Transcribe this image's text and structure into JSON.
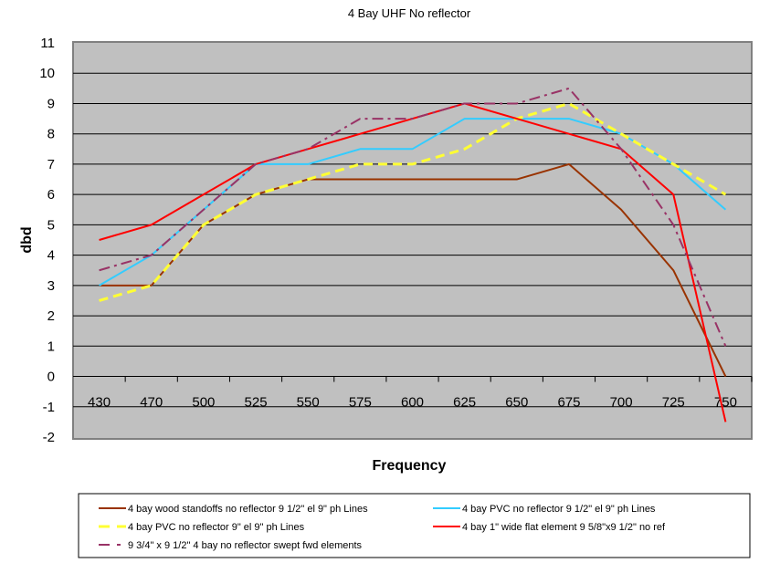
{
  "chart_data": {
    "type": "line",
    "title": "4 Bay UHF No reflector",
    "xlabel": "Frequency",
    "ylabel": "dbd",
    "categories": [
      "430",
      "470",
      "500",
      "525",
      "550",
      "575",
      "600",
      "625",
      "650",
      "675",
      "700",
      "725",
      "750"
    ],
    "ylim": [
      -2,
      11
    ],
    "yticks": [
      11,
      10,
      9,
      8,
      7,
      6,
      5,
      4,
      3,
      2,
      1,
      0,
      -1,
      -2
    ],
    "grid": true,
    "legend_position": "bottom",
    "plot_background": "#c0c0c0",
    "series": [
      {
        "name": "4 bay wood standoffs no reflector 9 1/2\" el 9\" ph Lines",
        "color": "#993300",
        "dash": "solid",
        "values": [
          3,
          3,
          5,
          6,
          6.5,
          6.5,
          6.5,
          6.5,
          6.5,
          7,
          5.5,
          3.5,
          0
        ]
      },
      {
        "name": "4 bay PVC no reflector 9 1/2\" el 9\" ph Lines",
        "color": "#33ccff",
        "dash": "solid",
        "values": [
          3,
          4,
          5.5,
          7,
          7,
          7.5,
          7.5,
          8.5,
          8.5,
          8.5,
          8,
          7,
          5.5
        ]
      },
      {
        "name": "4 bay PVC no reflector 9\" el 9\" ph Lines",
        "color": "#ffff33",
        "dash": "dashed",
        "values": [
          2.5,
          3,
          5,
          6,
          6.5,
          7,
          7,
          7.5,
          8.5,
          9,
          8,
          7,
          6
        ]
      },
      {
        "name": "4 bay 1\" wide flat element 9 5/8\"x9 1/2\"  no ref",
        "color": "#ff0000",
        "dash": "solid",
        "values": [
          4.5,
          5,
          6,
          7,
          7.5,
          8,
          8.5,
          9,
          8.5,
          8,
          7.5,
          6,
          -1.5
        ]
      },
      {
        "name": "9 3/4\" x 9 1/2\" 4 bay no reflector swept fwd elements",
        "color": "#993366",
        "dash": "dashdot",
        "values": [
          3.5,
          4,
          5.5,
          7,
          7.5,
          8.5,
          8.5,
          9,
          9,
          9.5,
          7.5,
          5,
          1
        ]
      }
    ]
  }
}
